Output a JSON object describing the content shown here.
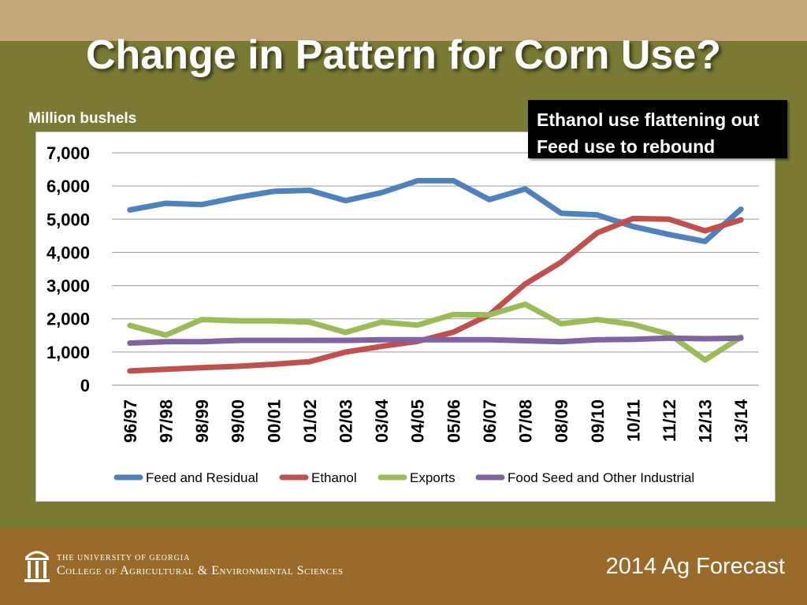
{
  "slide": {
    "title": "Change in Pattern for Corn Use?",
    "units_label": "Million bushels",
    "callout": [
      "Ethanol use flattening out",
      "Feed use to rebound"
    ],
    "footer_line1": "The University of Georgia",
    "footer_line2": "College of Agricultural & Environmental Sciences",
    "forecast_label": "2014 Ag Forecast",
    "colors": {
      "background": "#7a7a35",
      "top_band": "#c5a57c",
      "bottom_band": "#9a6a2b"
    }
  },
  "chart_data": {
    "type": "line",
    "title": "",
    "xlabel": "",
    "ylabel": "Million bushels",
    "ylim": [
      0,
      7000
    ],
    "yticks": [
      0,
      1000,
      2000,
      3000,
      4000,
      5000,
      6000,
      7000
    ],
    "ytick_labels": [
      "0",
      "1,000",
      "2,000",
      "3,000",
      "4,000",
      "5,000",
      "6,000",
      "7,000"
    ],
    "grid": true,
    "legend_position": "bottom",
    "categories": [
      "96/97",
      "97/98",
      "98/99",
      "99/00",
      "00/01",
      "01/02",
      "02/03",
      "03/04",
      "04/05",
      "05/06",
      "06/07",
      "07/08",
      "08/09",
      "09/10",
      "10/11",
      "11/12",
      "12/13",
      "13/14"
    ],
    "series": [
      {
        "name": "Feed and Residual",
        "color": "#4f81bd",
        "values": [
          5280,
          5480,
          5440,
          5660,
          5840,
          5870,
          5560,
          5800,
          6160,
          6160,
          5590,
          5910,
          5180,
          5130,
          4780,
          4540,
          4330,
          5300
        ]
      },
      {
        "name": "Ethanol",
        "color": "#c0504d",
        "values": [
          430,
          480,
          530,
          570,
          630,
          710,
          1000,
          1170,
          1320,
          1600,
          2120,
          3050,
          3710,
          4590,
          5020,
          5000,
          4650,
          4980
        ]
      },
      {
        "name": "Exports",
        "color": "#9bbb59",
        "values": [
          1800,
          1510,
          1980,
          1940,
          1940,
          1900,
          1590,
          1900,
          1810,
          2130,
          2120,
          2440,
          1850,
          1980,
          1830,
          1540,
          760,
          1450
        ]
      },
      {
        "name": "Food Seed and Other Industrial",
        "color": "#8064a2",
        "values": [
          1270,
          1310,
          1310,
          1350,
          1350,
          1350,
          1350,
          1370,
          1370,
          1370,
          1370,
          1340,
          1310,
          1370,
          1380,
          1420,
          1400,
          1420
        ]
      }
    ]
  }
}
